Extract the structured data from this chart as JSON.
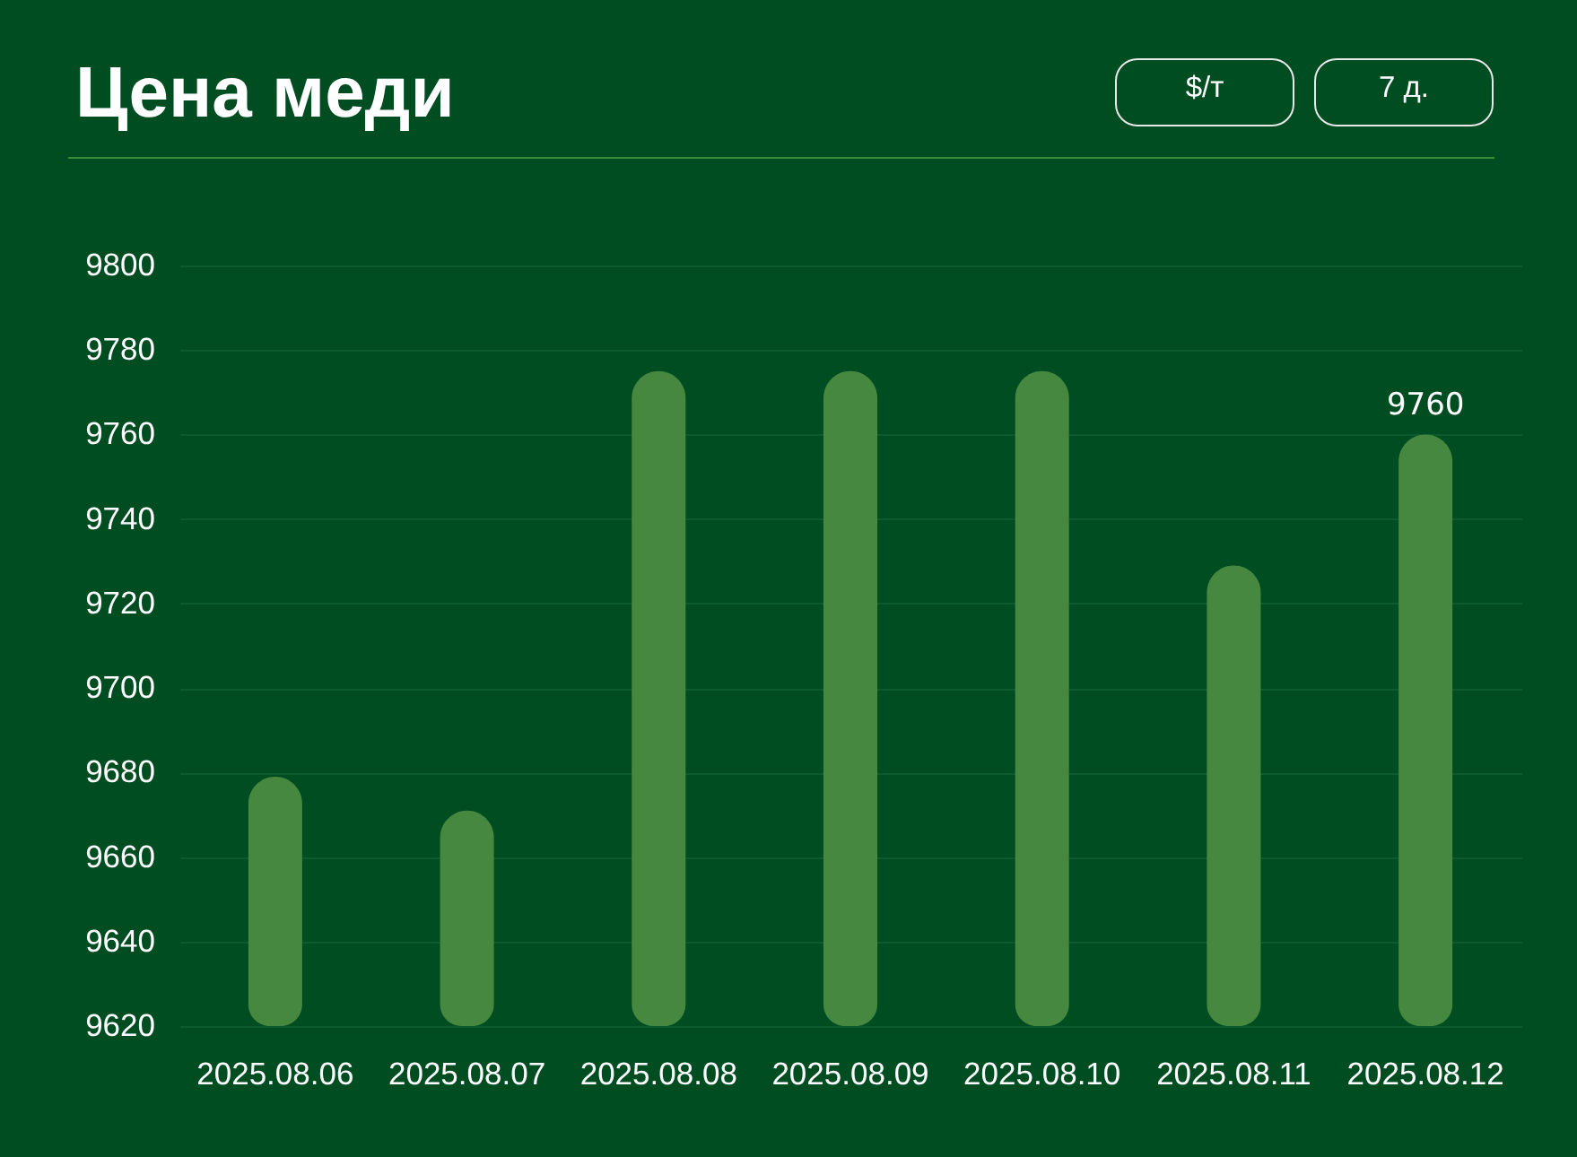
{
  "chart_data": {
    "type": "bar",
    "title": "Цена меди",
    "annotations": [
      "$/т",
      "7 д."
    ],
    "categories": [
      "2025.08.06",
      "2025.08.07",
      "2025.08.08",
      "2025.08.09",
      "2025.08.10",
      "2025.08.11",
      "2025.08.12"
    ],
    "values": [
      9679,
      9671,
      9775,
      9775,
      9775,
      9729,
      9760
    ],
    "color": "#46883f",
    "value_labels": [
      null,
      null,
      null,
      null,
      null,
      null,
      "9760"
    ],
    "ylim": [
      9620,
      9800
    ],
    "yticks": [
      9620,
      9640,
      9660,
      9680,
      9700,
      9720,
      9740,
      9760,
      9780,
      9800
    ],
    "grid": "y"
  }
}
